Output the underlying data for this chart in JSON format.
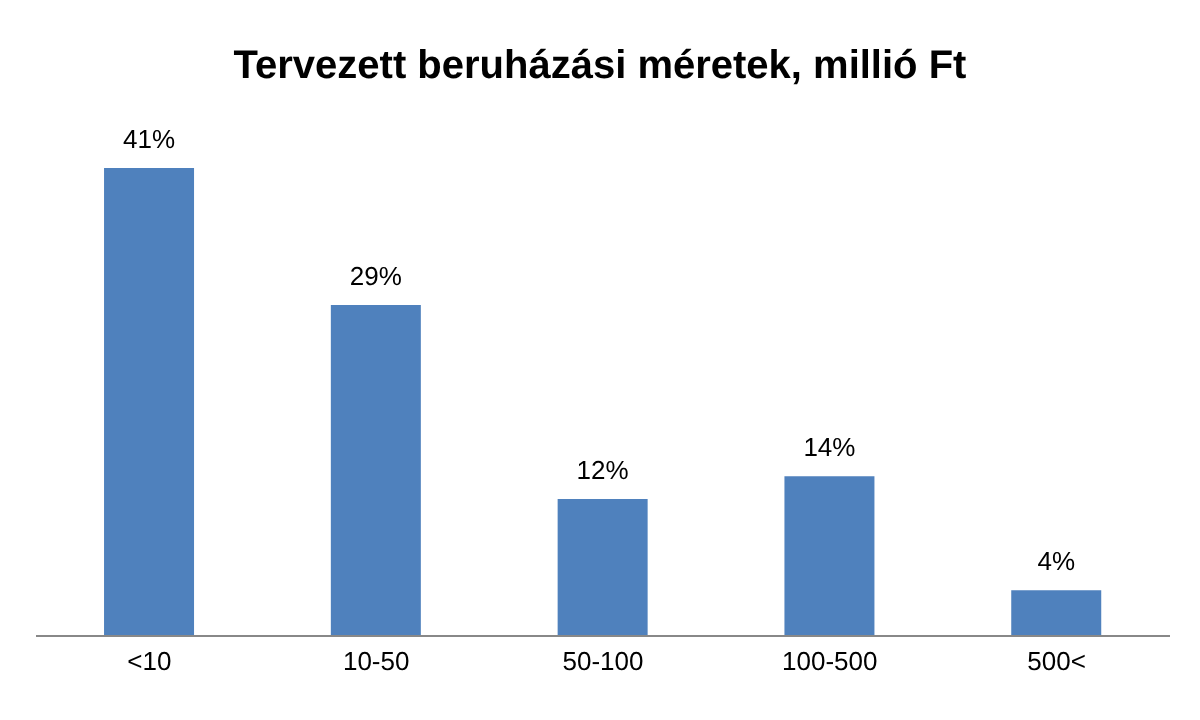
{
  "chart_data": {
    "type": "bar",
    "title": "Tervezett beruházási méretek, millió Ft",
    "categories": [
      "<10",
      "10-50",
      "50-100",
      "100-500",
      "500<"
    ],
    "values": [
      41,
      29,
      12,
      14,
      4
    ],
    "value_labels": [
      "41%",
      "29%",
      "12%",
      "14%",
      "4%"
    ],
    "color": "#4f81bd",
    "grid": false,
    "legend": false
  }
}
